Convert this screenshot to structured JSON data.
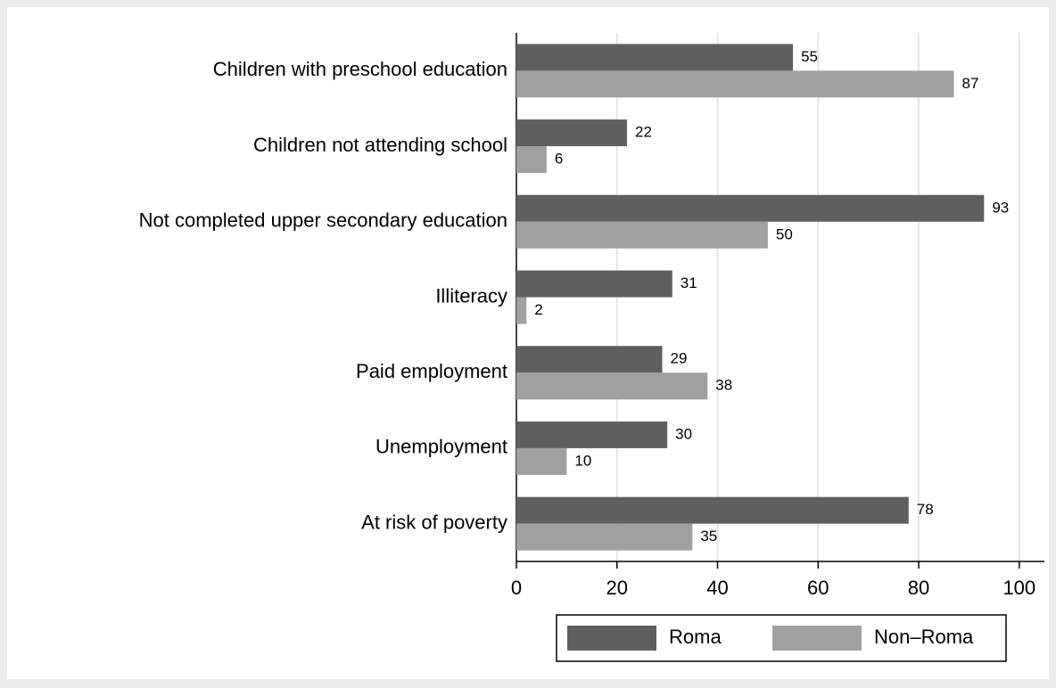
{
  "chart_data": {
    "type": "bar",
    "orientation": "horizontal",
    "categories": [
      "Children with preschool education",
      "Children not attending school",
      "Not completed upper secondary education",
      "Illiteracy",
      "Paid employment",
      "Unemployment",
      "At risk of poverty"
    ],
    "series": [
      {
        "name": "Roma",
        "color": "#5f5f5f",
        "values": [
          55,
          22,
          93,
          31,
          29,
          30,
          78
        ]
      },
      {
        "name": "Non–Roma",
        "color": "#a0a0a0",
        "values": [
          87,
          6,
          50,
          2,
          38,
          10,
          35
        ]
      }
    ],
    "xlim": [
      0,
      105
    ],
    "xticks": [
      0,
      20,
      40,
      60,
      80,
      100
    ],
    "grid": true,
    "legend": "bottom"
  }
}
